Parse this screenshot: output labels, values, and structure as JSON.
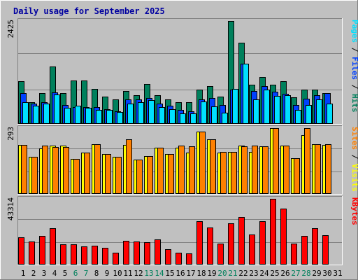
{
  "chart_data": {
    "type": "bar",
    "title": "Daily usage for September 2025",
    "categories": [
      "1",
      "2",
      "3",
      "4",
      "5",
      "6",
      "7",
      "8",
      "9",
      "10",
      "11",
      "12",
      "13",
      "14",
      "15",
      "16",
      "17",
      "18",
      "19",
      "20",
      "21",
      "22",
      "23",
      "24",
      "25",
      "26",
      "27",
      "28",
      "29",
      "30",
      "31"
    ],
    "weekend_days": [
      "6",
      "7",
      "13",
      "14",
      "20",
      "21",
      "27",
      "28"
    ],
    "panels": [
      {
        "id": "hits",
        "max_label": "2425",
        "ymax": 2425,
        "series": [
          {
            "name": "Hits",
            "color": "#00805c",
            "values": [
              1000,
              500,
              720,
              1340,
              720,
              1010,
              1010,
              810,
              630,
              560,
              760,
              660,
              930,
              670,
              570,
              500,
              500,
              800,
              880,
              630,
              2420,
              1910,
              910,
              1090,
              910,
              1000,
              620,
              790,
              800,
              710,
              0
            ]
          },
          {
            "name": "Files",
            "color": "#0040ff",
            "values": [
              710,
              470,
              500,
              730,
              440,
              380,
              390,
              380,
              340,
              290,
              560,
              560,
              600,
              460,
              410,
              320,
              280,
              560,
              590,
              440,
              790,
              1410,
              770,
              880,
              750,
              690,
              440,
              580,
              670,
              710,
              0
            ]
          },
          {
            "name": "Pages",
            "color": "#00e0ff",
            "values": [
              490,
              420,
              460,
              680,
              360,
              410,
              360,
              320,
              320,
              260,
              470,
              500,
              540,
              380,
              330,
              240,
              230,
              510,
              400,
              250,
              820,
              1410,
              570,
              800,
              650,
              660,
              310,
              430,
              560,
              460,
              0
            ]
          }
        ],
        "right_label": [
          {
            "text": "Pages",
            "color": "#00e0ff"
          },
          {
            "text": " / ",
            "color": "#000000"
          },
          {
            "text": "Files",
            "color": "#0040ff"
          },
          {
            "text": " / ",
            "color": "#000000"
          },
          {
            "text": "Hits",
            "color": "#00805c"
          }
        ]
      },
      {
        "id": "visits",
        "max_label": "293",
        "ymax": 293,
        "series": [
          {
            "name": "Visits",
            "color": "#ffff00",
            "values": [
              217,
              163,
              203,
              213,
              214,
              155,
              183,
              220,
              178,
              164,
              217,
              150,
              168,
              205,
              176,
              206,
              182,
              278,
              243,
              184,
              185,
              213,
              185,
              212,
              293,
              214,
              159,
              262,
              219,
              218,
              0
            ]
          },
          {
            "name": "Sites",
            "color": "#ff8000",
            "values": [
              217,
              163,
              213,
              208,
              208,
              155,
              183,
              221,
              178,
              164,
              243,
              150,
              168,
              205,
              176,
              214,
              211,
              278,
              243,
              185,
              185,
              211,
              213,
              212,
              293,
              214,
              159,
              293,
              219,
              220,
              0
            ]
          }
        ],
        "right_label": [
          {
            "text": "Sites",
            "color": "#ff8000"
          },
          {
            "text": " / ",
            "color": "#000000"
          },
          {
            "text": "Visits",
            "color": "#ffff00"
          }
        ]
      },
      {
        "id": "kbytes",
        "max_label": "43314",
        "ymax": 43314,
        "series": [
          {
            "name": "KBytes",
            "color": "#ff0000",
            "values": [
              17500,
              14700,
              18500,
              23800,
              13200,
              13200,
              11700,
              12200,
              10900,
              7400,
              15200,
              14700,
              14500,
              16400,
              9600,
              7400,
              7000,
              28600,
              24400,
              13700,
              27000,
              31200,
              19400,
              28400,
              43314,
              36600,
              13700,
              18400,
              23800,
              19000,
              0
            ]
          }
        ],
        "right_label": [
          {
            "text": "KBytes",
            "color": "#ff0000"
          }
        ]
      }
    ],
    "day_label_color": "#000000",
    "weekend_label_color": "#00805c"
  }
}
